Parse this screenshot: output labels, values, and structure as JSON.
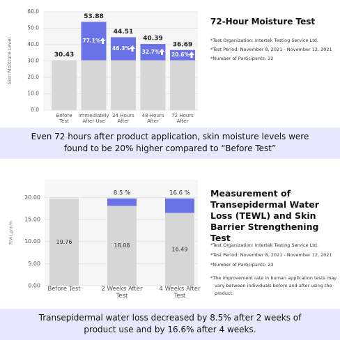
{
  "chart_data": [
    {
      "type": "bar",
      "title": "72-Hour Moisture Test",
      "y_label": "Skin Moisture Level",
      "categories": [
        "Before\nTest",
        "Immediately\nAfter Use",
        "24 Hours\nAfter",
        "48 Hours\nAfter",
        "72 Hours\nAfter"
      ],
      "values": [
        30.43,
        53.88,
        44.51,
        40.39,
        36.69
      ],
      "change_labels": [
        null,
        "77.1%",
        "46.3%",
        "32.7%",
        "20.6%"
      ],
      "base_color": "#d6d6d6",
      "color": "#6a72e8",
      "ylim": [
        0,
        60
      ],
      "yticks": [
        {
          "value": 0,
          "label": "0.0"
        },
        {
          "value": 10,
          "label": "10.0"
        },
        {
          "value": 20,
          "label": "20.0"
        },
        {
          "value": 30,
          "label": "30.0"
        },
        {
          "value": 40,
          "label": "40.0"
        },
        {
          "value": 50,
          "label": "50.0"
        },
        {
          "value": 60,
          "label": "60.0"
        }
      ],
      "grid": true,
      "notes": [
        "*Test Organization: Intertek Testing Service Ltd.",
        "*Test Period: November 8, 2021 - November 12, 2021",
        "*Number of Participants: 22"
      ],
      "caption": "Even 72 hours after product application, skin moisture levels were found to be 20% higher compared to “Before Test”"
    },
    {
      "type": "bar",
      "title": "Measurement of Transepidermal Water Loss (TEWL) and Skin Barrier Strengthening Test",
      "y_label": "TEWL,g/m²/h",
      "categories": [
        "Before Test",
        "2 Weeks After Test",
        "4 Weeks After Test"
      ],
      "values": [
        19.76,
        18.08,
        16.49
      ],
      "change_labels": [
        null,
        "8.5 %",
        "16.6 %"
      ],
      "base_color": "#d6d6d6",
      "color": "#6a72e8",
      "ylim": [
        0,
        24
      ],
      "yticks": [
        {
          "value": 0,
          "label": "0.00"
        },
        {
          "value": 5,
          "label": "5.00"
        },
        {
          "value": 10,
          "label": "10.00"
        },
        {
          "value": 15,
          "label": "15.00"
        },
        {
          "value": 20,
          "label": "20.00"
        }
      ],
      "grid": true,
      "notes": [
        "*Test Organization: Intertek Testing Service Ltd.",
        "*Test Period: November 8, 2021 - November 12, 2021",
        "*Number of Participants: 23"
      ],
      "footnote": "*The improvement rate in human application tests may vary between individuals before and after using the product.",
      "caption": "Transepidermal water loss decreased by 8.5% after 2 weeks of product use and by 16.6% after 4 weeks."
    }
  ]
}
